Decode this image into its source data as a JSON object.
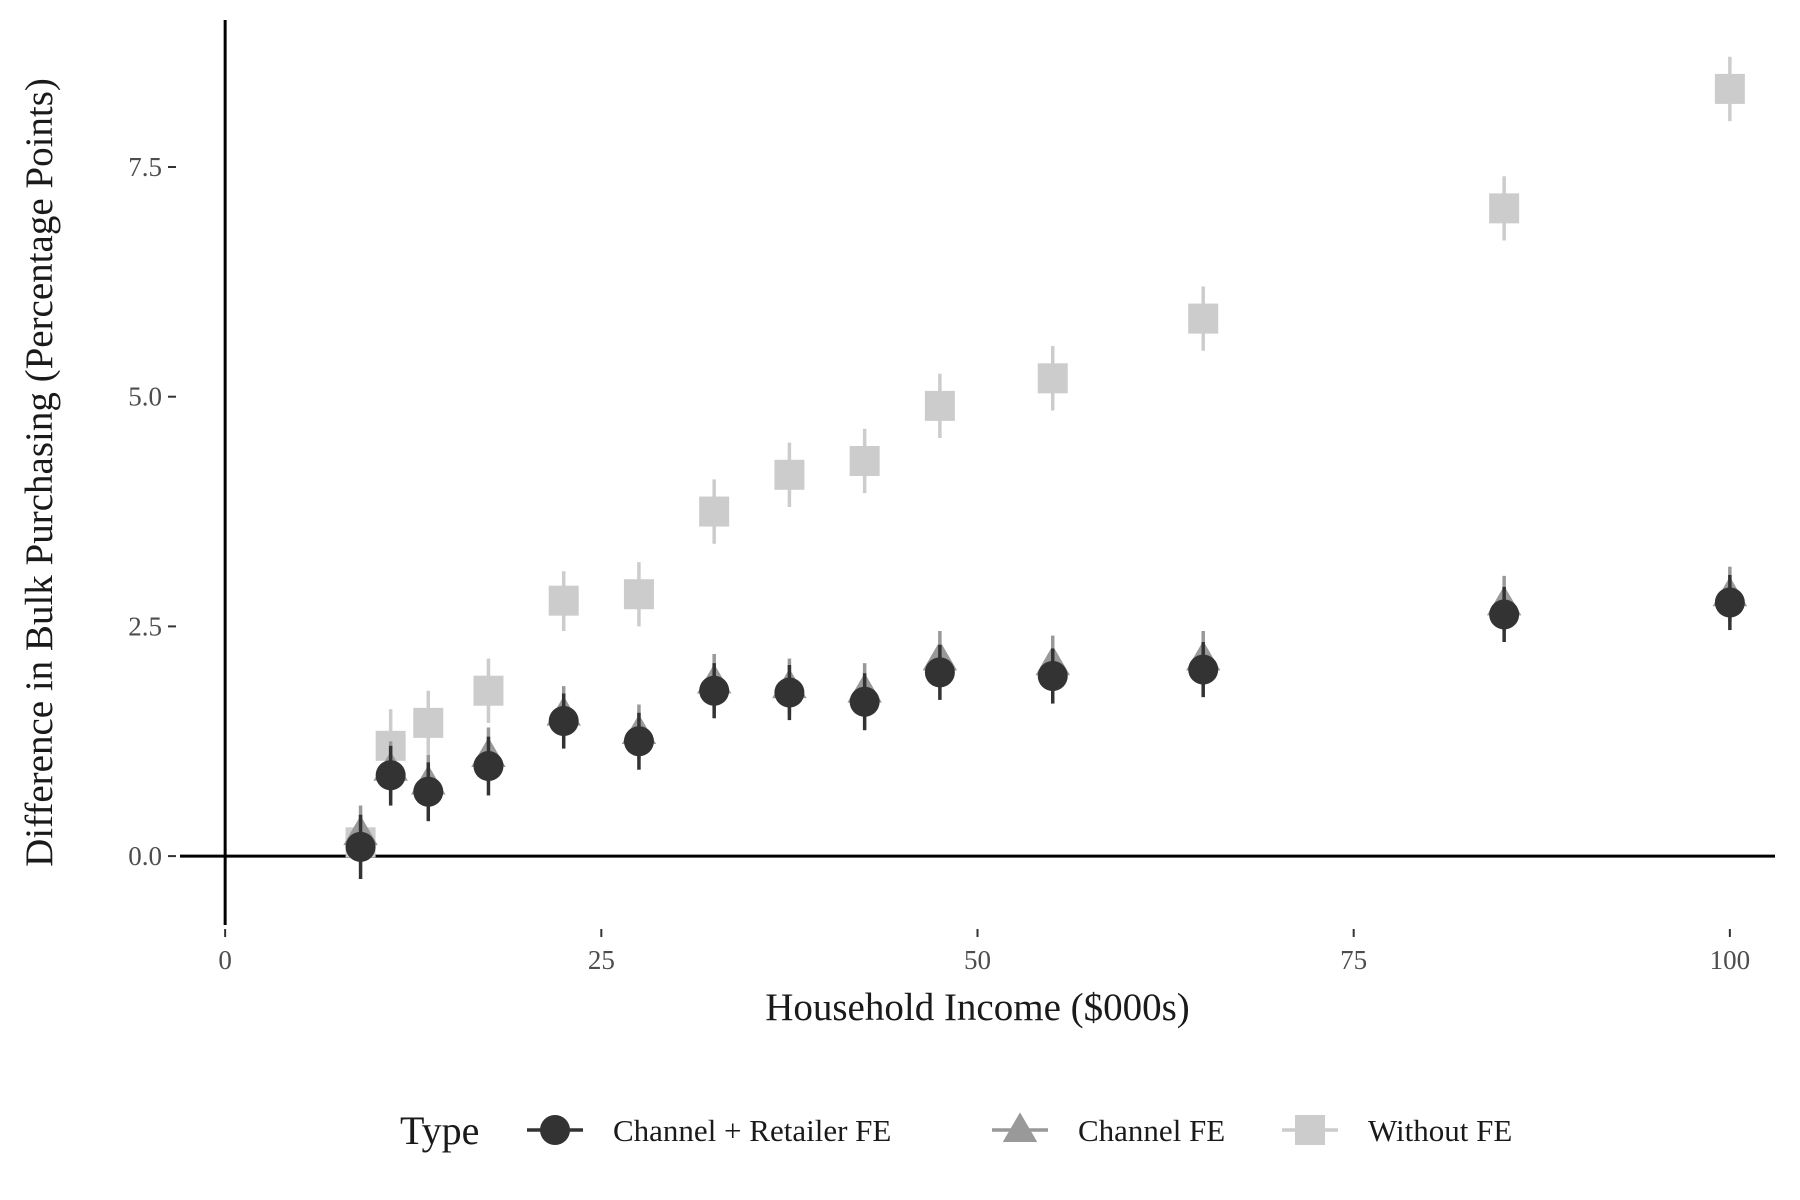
{
  "chart_data": {
    "type": "scatter",
    "title": "",
    "xlabel": "Household Income ($000s)",
    "ylabel": "Difference in Bulk Purchasing (Percentage Points)",
    "xlim": [
      -3,
      103
    ],
    "ylim": [
      -0.75,
      9.1
    ],
    "x_ticks": [
      0,
      25,
      50,
      75,
      100
    ],
    "x_tick_labels": [
      "0",
      "25",
      "50",
      "75",
      "100"
    ],
    "y_ticks": [
      0,
      2.5,
      5,
      7.5
    ],
    "y_tick_labels": [
      "0.0",
      "2.5",
      "5.0",
      "7.5"
    ],
    "grid": false,
    "reference_lines": {
      "x": 0,
      "y": 0
    },
    "legend": {
      "title": "Type",
      "position": "bottom"
    },
    "series": [
      {
        "name": "Without FE",
        "marker": "square",
        "color": "#cccccc",
        "points": [
          {
            "x": 9,
            "y": 0.15,
            "lo": -0.1,
            "hi": 0.45
          },
          {
            "x": 11,
            "y": 1.2,
            "lo": 0.85,
            "hi": 1.6
          },
          {
            "x": 13.5,
            "y": 1.45,
            "lo": 1.1,
            "hi": 1.8
          },
          {
            "x": 17.5,
            "y": 1.8,
            "lo": 1.45,
            "hi": 2.15
          },
          {
            "x": 22.5,
            "y": 2.78,
            "lo": 2.45,
            "hi": 3.1
          },
          {
            "x": 27.5,
            "y": 2.85,
            "lo": 2.5,
            "hi": 3.2
          },
          {
            "x": 32.5,
            "y": 3.75,
            "lo": 3.4,
            "hi": 4.1
          },
          {
            "x": 37.5,
            "y": 4.15,
            "lo": 3.8,
            "hi": 4.5
          },
          {
            "x": 42.5,
            "y": 4.3,
            "lo": 3.95,
            "hi": 4.65
          },
          {
            "x": 47.5,
            "y": 4.9,
            "lo": 4.55,
            "hi": 5.25
          },
          {
            "x": 55,
            "y": 5.2,
            "lo": 4.85,
            "hi": 5.55
          },
          {
            "x": 65,
            "y": 5.85,
            "lo": 5.5,
            "hi": 6.2
          },
          {
            "x": 85,
            "y": 7.05,
            "lo": 6.7,
            "hi": 7.4
          },
          {
            "x": 100,
            "y": 8.35,
            "lo": 8.0,
            "hi": 8.7
          }
        ]
      },
      {
        "name": "Channel FE",
        "marker": "triangle",
        "color": "#999999",
        "points": [
          {
            "x": 9,
            "y": 0.25,
            "lo": -0.05,
            "hi": 0.55
          },
          {
            "x": 11,
            "y": 0.95,
            "lo": 0.65,
            "hi": 1.25
          },
          {
            "x": 13.5,
            "y": 0.8,
            "lo": 0.5,
            "hi": 1.1
          },
          {
            "x": 17.5,
            "y": 1.1,
            "lo": 0.8,
            "hi": 1.4
          },
          {
            "x": 22.5,
            "y": 1.55,
            "lo": 1.25,
            "hi": 1.85
          },
          {
            "x": 27.5,
            "y": 1.35,
            "lo": 1.05,
            "hi": 1.65
          },
          {
            "x": 32.5,
            "y": 1.9,
            "lo": 1.6,
            "hi": 2.2
          },
          {
            "x": 37.5,
            "y": 1.85,
            "lo": 1.55,
            "hi": 2.15
          },
          {
            "x": 42.5,
            "y": 1.8,
            "lo": 1.5,
            "hi": 2.1
          },
          {
            "x": 47.5,
            "y": 2.15,
            "lo": 1.85,
            "hi": 2.45
          },
          {
            "x": 55,
            "y": 2.1,
            "lo": 1.8,
            "hi": 2.4
          },
          {
            "x": 65,
            "y": 2.15,
            "lo": 1.85,
            "hi": 2.45
          },
          {
            "x": 85,
            "y": 2.75,
            "lo": 2.45,
            "hi": 3.05
          },
          {
            "x": 100,
            "y": 2.85,
            "lo": 2.55,
            "hi": 3.15
          }
        ]
      },
      {
        "name": "Channel + Retailer FE",
        "marker": "circle",
        "color": "#333333",
        "points": [
          {
            "x": 9,
            "y": 0.1,
            "lo": -0.25,
            "hi": 0.45
          },
          {
            "x": 11,
            "y": 0.88,
            "lo": 0.55,
            "hi": 1.2
          },
          {
            "x": 13.5,
            "y": 0.7,
            "lo": 0.38,
            "hi": 1.02
          },
          {
            "x": 17.5,
            "y": 0.98,
            "lo": 0.66,
            "hi": 1.3
          },
          {
            "x": 22.5,
            "y": 1.47,
            "lo": 1.17,
            "hi": 1.77
          },
          {
            "x": 27.5,
            "y": 1.25,
            "lo": 0.94,
            "hi": 1.56
          },
          {
            "x": 32.5,
            "y": 1.8,
            "lo": 1.5,
            "hi": 2.1
          },
          {
            "x": 37.5,
            "y": 1.78,
            "lo": 1.48,
            "hi": 2.08
          },
          {
            "x": 42.5,
            "y": 1.68,
            "lo": 1.37,
            "hi": 1.99
          },
          {
            "x": 47.5,
            "y": 2.0,
            "lo": 1.7,
            "hi": 2.3
          },
          {
            "x": 55,
            "y": 1.96,
            "lo": 1.66,
            "hi": 2.26
          },
          {
            "x": 65,
            "y": 2.03,
            "lo": 1.73,
            "hi": 2.33
          },
          {
            "x": 85,
            "y": 2.63,
            "lo": 2.33,
            "hi": 2.93
          },
          {
            "x": 100,
            "y": 2.76,
            "lo": 2.46,
            "hi": 3.06
          }
        ]
      }
    ],
    "legend_order": [
      "Channel + Retailer FE",
      "Channel FE",
      "Without FE"
    ]
  }
}
